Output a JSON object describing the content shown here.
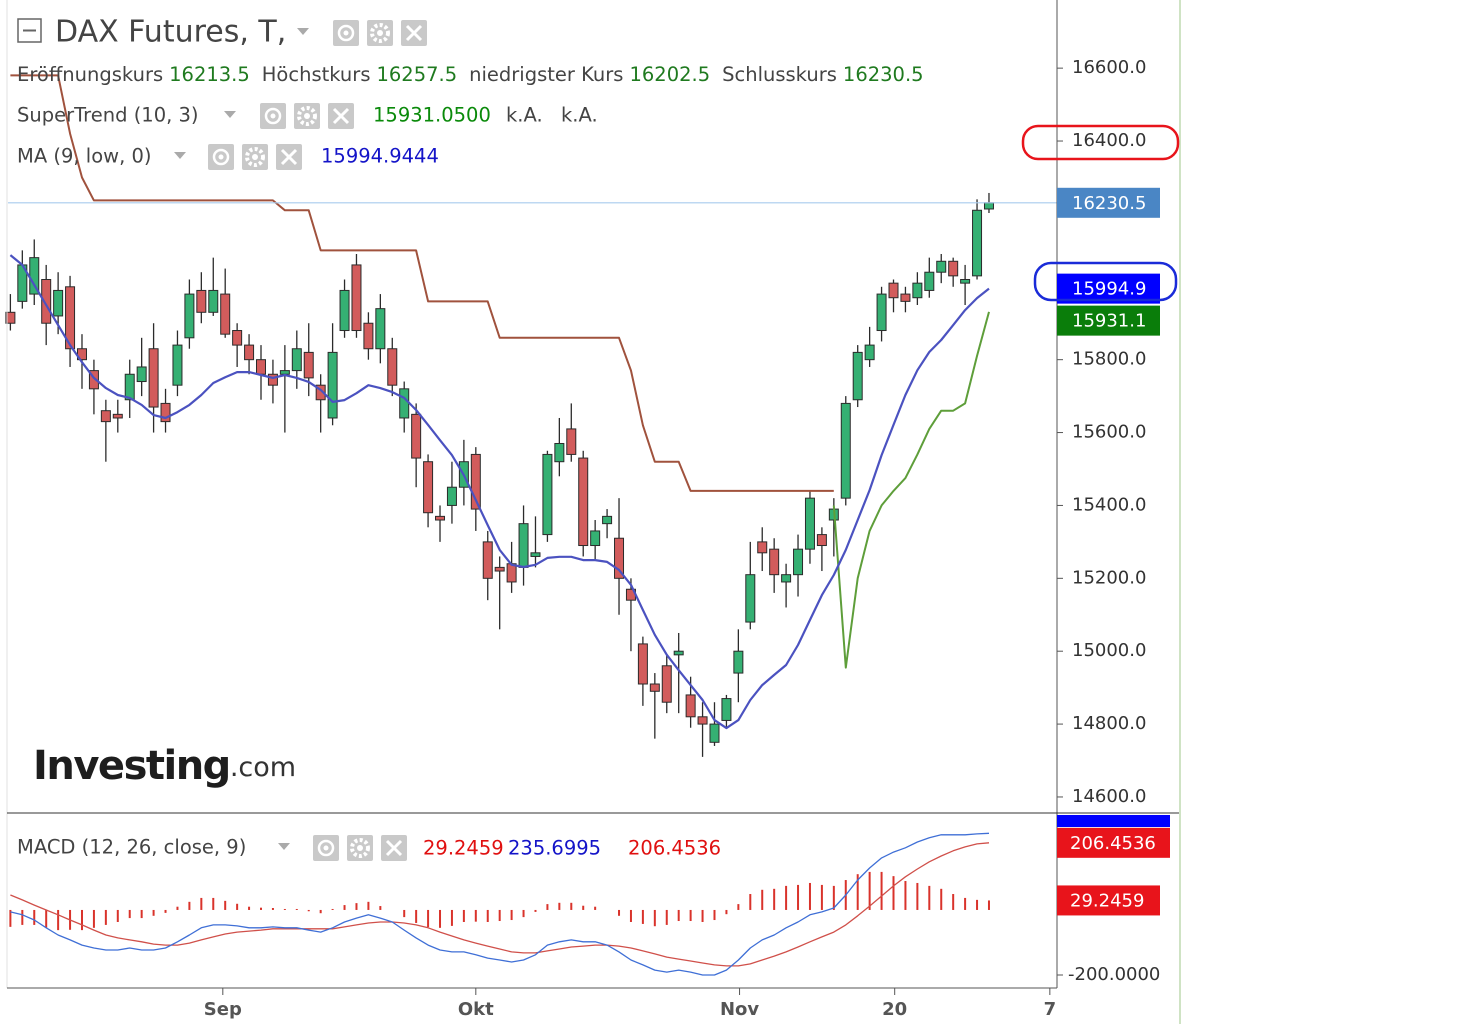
{
  "chart_data": [
    {
      "type": "candlestick",
      "title": "DAX Futures, T,",
      "ohlc_labels": [
        "Eröffnungskurs",
        "Höchstkurs",
        "niedrigster Kurs",
        "Schlusskurs"
      ],
      "up_color": "#35b073",
      "down_color": "#d25c5c",
      "last_price_color": "#4a86c5",
      "value_color": "#1f7a1f",
      "open": [
        15930,
        15960,
        15980,
        16020,
        15920,
        16000,
        15830,
        15770,
        15660,
        15650,
        15690,
        15740,
        15830,
        15680,
        15730,
        15860,
        15990,
        15930,
        15980,
        15880,
        15840,
        15800,
        15760,
        15760,
        15770,
        15820,
        15730,
        15640,
        15880,
        16060,
        15900,
        15830,
        15830,
        15640,
        15650,
        15520,
        15370,
        15400,
        15450,
        15540,
        15300,
        15230,
        15240,
        15230,
        15260,
        15320,
        15520,
        15610,
        15530,
        15290,
        15350,
        15310,
        15170,
        15020,
        14910,
        14960,
        14990,
        14880,
        14820,
        14750,
        14810,
        14940,
        15080,
        15300,
        15280,
        15190,
        15210,
        15280,
        15320,
        15360,
        15420,
        15690,
        15800,
        15880,
        16010,
        15980,
        15970,
        15990,
        16040,
        16070,
        16010,
        16030,
        16213.5
      ],
      "high": [
        15980,
        16100,
        16130,
        16060,
        16040,
        16030,
        15870,
        15800,
        15690,
        15690,
        15800,
        15860,
        15900,
        15720,
        15880,
        16020,
        16040,
        16080,
        16050,
        15900,
        15870,
        15840,
        15800,
        15840,
        15880,
        15900,
        15760,
        15900,
        16020,
        16090,
        15930,
        15980,
        15860,
        15740,
        15680,
        15540,
        15400,
        15520,
        15580,
        15560,
        15330,
        15260,
        15300,
        15400,
        15370,
        15550,
        15640,
        15680,
        15550,
        15360,
        15390,
        15420,
        15200,
        15040,
        14940,
        14990,
        15050,
        14930,
        14860,
        14860,
        14880,
        15060,
        15300,
        15340,
        15310,
        15240,
        15320,
        15440,
        15340,
        15420,
        15700,
        15840,
        15890,
        16000,
        16020,
        16000,
        16040,
        16080,
        16090,
        16080,
        16060,
        16240,
        16257.5
      ],
      "low": [
        15880,
        15940,
        15950,
        15840,
        15870,
        15780,
        15720,
        15650,
        15520,
        15600,
        15640,
        15700,
        15600,
        15600,
        15700,
        15830,
        15900,
        15920,
        15860,
        15780,
        15760,
        15690,
        15680,
        15600,
        15720,
        15700,
        15600,
        15620,
        15860,
        15860,
        15800,
        15790,
        15700,
        15600,
        15450,
        15340,
        15300,
        15350,
        15400,
        15330,
        15140,
        15060,
        15160,
        15180,
        15230,
        15300,
        15480,
        15520,
        15260,
        15250,
        15310,
        15100,
        15000,
        14850,
        14760,
        14830,
        14830,
        14790,
        14710,
        14740,
        14790,
        14860,
        15060,
        15220,
        15160,
        15120,
        15150,
        15240,
        15220,
        15260,
        15400,
        15670,
        15780,
        15850,
        15930,
        15930,
        15950,
        15970,
        16010,
        16000,
        15950,
        16020,
        16202.5
      ],
      "close": [
        15900,
        16060,
        16080,
        15900,
        15990,
        15830,
        15800,
        15720,
        15630,
        15640,
        15760,
        15780,
        15670,
        15630,
        15840,
        15980,
        15930,
        15990,
        15870,
        15840,
        15800,
        15760,
        15730,
        15770,
        15830,
        15750,
        15690,
        15820,
        15990,
        15880,
        15830,
        15940,
        15730,
        15720,
        15530,
        15380,
        15360,
        15450,
        15520,
        15390,
        15200,
        15220,
        15190,
        15350,
        15270,
        15540,
        15570,
        15540,
        15290,
        15330,
        15370,
        15200,
        15140,
        14910,
        14890,
        14860,
        15000,
        14820,
        14800,
        14800,
        14870,
        15000,
        15210,
        15270,
        15210,
        15210,
        15280,
        15420,
        15290,
        15390,
        15680,
        15820,
        15840,
        15980,
        15970,
        15960,
        16010,
        16040,
        16070,
        16030,
        16020,
        16210,
        16230.5
      ],
      "indicators": [
        {
          "name": "SuperTrend (10, 3)",
          "color_down": "#a0523d",
          "color_up": "#5e9e3a",
          "values_down": [
            16580,
            16580,
            16580,
            16580,
            16580,
            16420,
            16300,
            16237,
            16237,
            16237,
            16237,
            16237,
            16237,
            16237,
            16237,
            16237,
            16237,
            16237,
            16237,
            16237,
            16237,
            16237,
            16237,
            16210,
            16210,
            16210,
            16100,
            16100,
            16100,
            16100,
            16100,
            16100,
            16100,
            16100,
            16100,
            15960,
            15960,
            15960,
            15960,
            15960,
            15960,
            15860,
            15860,
            15860,
            15860,
            15860,
            15860,
            15860,
            15860,
            15860,
            15860,
            15860,
            15770,
            15620,
            15520,
            15520,
            15520,
            15440,
            15440,
            15440,
            15440,
            15440,
            15440,
            15440,
            15440,
            15440,
            15440,
            15440,
            15440,
            15440,
            null,
            null,
            null,
            null,
            null,
            null,
            null,
            null,
            null,
            null,
            null,
            null,
            null
          ],
          "values_up": [
            null,
            null,
            null,
            null,
            null,
            null,
            null,
            null,
            null,
            null,
            null,
            null,
            null,
            null,
            null,
            null,
            null,
            null,
            null,
            null,
            null,
            null,
            null,
            null,
            null,
            null,
            null,
            null,
            null,
            null,
            null,
            null,
            null,
            null,
            null,
            null,
            null,
            null,
            null,
            null,
            null,
            null,
            null,
            null,
            null,
            null,
            null,
            null,
            null,
            null,
            null,
            null,
            null,
            null,
            null,
            null,
            null,
            null,
            null,
            null,
            null,
            null,
            null,
            null,
            null,
            null,
            null,
            null,
            null,
            15400,
            14955,
            15200,
            15330,
            15400,
            15440,
            15475,
            15540,
            15610,
            15660,
            15660,
            15680,
            15810,
            15931.05
          ],
          "value_label": "15931.0500",
          "status": [
            "k.A.",
            "k.A."
          ],
          "axis_label": "15931.1",
          "value_color": "#0a8a0a",
          "label_color": "#0a7d0a"
        },
        {
          "name": "MA (9, low, 0)",
          "color": "#4b52c0",
          "value_color": "#1414c8",
          "label_color": "#0000ff",
          "values": [
            16087,
            16060,
            16005,
            15950,
            15895,
            15840,
            15793,
            15750,
            15722,
            15703,
            15695,
            15676,
            15648,
            15640,
            15656,
            15676,
            15703,
            15736,
            15752,
            15766,
            15766,
            15758,
            15750,
            15758,
            15750,
            15739,
            15717,
            15684,
            15689,
            15708,
            15730,
            15722,
            15711,
            15695,
            15662,
            15621,
            15579,
            15538,
            15483,
            15415,
            15346,
            15278,
            15237,
            15231,
            15237,
            15256,
            15259,
            15259,
            15250,
            15250,
            15245,
            15223,
            15182,
            15113,
            15045,
            14990,
            14948,
            14907,
            14866,
            14811,
            14789,
            14811,
            14866,
            14907,
            14935,
            14962,
            15017,
            15086,
            15154,
            15209,
            15278,
            15360,
            15442,
            15538,
            15621,
            15703,
            15771,
            15821,
            15854,
            15895,
            15936,
            15969,
            15994.9444
          ],
          "axis_label": "15994.9"
        }
      ],
      "watermark": [
        "Investing",
        ".com"
      ],
      "xlim": [
        -0.2,
        87.7
      ],
      "xticks": [
        {
          "value": 17.8,
          "label": "Sep"
        },
        {
          "value": 39.0,
          "label": "Okt"
        },
        {
          "value": 61.1,
          "label": "Nov"
        },
        {
          "value": 74.1,
          "label": "20"
        },
        {
          "value": 87.1,
          "label": "7"
        }
      ],
      "ylim": [
        14556,
        16787
      ],
      "yticks": [
        {
          "value": 14600,
          "label": "14600.0"
        },
        {
          "value": 14800,
          "label": "14800.0"
        },
        {
          "value": 15000,
          "label": "15000.0"
        },
        {
          "value": 15200,
          "label": "15200.0"
        },
        {
          "value": 15400,
          "label": "15400.0"
        },
        {
          "value": 15600,
          "label": "15600.0"
        },
        {
          "value": 15800,
          "label": "15800.0"
        },
        {
          "value": 16400,
          "label": "16400.0"
        },
        {
          "value": 16600,
          "label": "16600.0"
        }
      ]
    },
    {
      "type": "macd",
      "name": "MACD (12, 26, close, 9)",
      "histogram": {
        "color": "#d9332b",
        "value_color": "#e01010",
        "label_color": "#e8141b",
        "values": [
          -52,
          -46,
          -46,
          -55,
          -62,
          -61,
          -62,
          -55,
          -46,
          -37,
          -25,
          -25,
          -18,
          -9,
          10,
          25,
          37,
          37,
          28,
          19,
          10,
          7,
          6,
          3,
          3,
          -4,
          -10,
          3,
          15,
          21,
          25,
          12,
          0,
          -22,
          -40,
          -53,
          -55,
          -49,
          -37,
          -36,
          -37,
          -34,
          -31,
          -22,
          -6,
          18,
          22,
          22,
          13,
          10,
          0,
          -18,
          -37,
          -43,
          -50,
          -46,
          -34,
          -34,
          -37,
          -31,
          -13,
          18,
          49,
          62,
          65,
          74,
          77,
          83,
          77,
          74,
          92,
          110,
          117,
          117,
          104,
          89,
          83,
          74,
          65,
          49,
          37,
          31,
          29.2459
        ]
      },
      "macd": {
        "color": "#3f6fd6",
        "value_color": "#1414c8",
        "label_color": "#0000ff",
        "values": [
          -6,
          -15,
          -31,
          -55,
          -77,
          -92,
          -108,
          -117,
          -123,
          -123,
          -117,
          -123,
          -123,
          -117,
          -98,
          -77,
          -55,
          -46,
          -46,
          -49,
          -55,
          -55,
          -52,
          -55,
          -55,
          -62,
          -68,
          -55,
          -37,
          -25,
          -15,
          -25,
          -37,
          -62,
          -86,
          -108,
          -123,
          -129,
          -129,
          -138,
          -148,
          -154,
          -160,
          -154,
          -138,
          -108,
          -98,
          -92,
          -98,
          -98,
          -108,
          -129,
          -154,
          -169,
          -185,
          -191,
          -185,
          -191,
          -200,
          -200,
          -185,
          -154,
          -117,
          -92,
          -77,
          -55,
          -37,
          -15,
          -6,
          6,
          46,
          92,
          129,
          160,
          178,
          191,
          209,
          222,
          231,
          231,
          231,
          234,
          235.6995
        ]
      },
      "signal": {
        "color": "#d0504a",
        "value_color": "#e01010",
        "label_color": "#e8141b",
        "values": [
          46,
          31,
          15,
          0,
          -15,
          -31,
          -46,
          -62,
          -77,
          -86,
          -92,
          -98,
          -105,
          -108,
          -108,
          -102,
          -92,
          -83,
          -74,
          -68,
          -65,
          -62,
          -58,
          -58,
          -58,
          -58,
          -58,
          -58,
          -52,
          -46,
          -40,
          -37,
          -37,
          -40,
          -46,
          -55,
          -68,
          -80,
          -92,
          -102,
          -111,
          -120,
          -129,
          -132,
          -132,
          -126,
          -120,
          -114,
          -111,
          -108,
          -108,
          -111,
          -117,
          -126,
          -135,
          -145,
          -151,
          -157,
          -163,
          -169,
          -172,
          -172,
          -166,
          -154,
          -142,
          -129,
          -114,
          -98,
          -83,
          -68,
          -46,
          -18,
          12,
          43,
          74,
          102,
          126,
          148,
          166,
          182,
          194,
          203,
          206.4536
        ]
      },
      "ylim": [
        -240,
        292
      ],
      "yticks": [
        {
          "value": -200,
          "label": "-200.0000"
        }
      ]
    }
  ]
}
